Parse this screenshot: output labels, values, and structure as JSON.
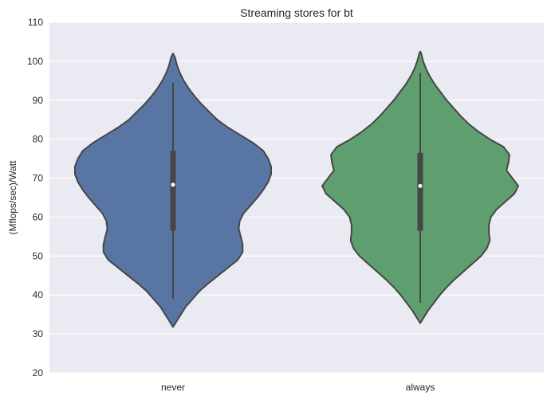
{
  "chart_data": {
    "type": "violin",
    "title": "Streaming stores for bt",
    "xlabel": "",
    "ylabel": "(Mflops/sec)/Watt",
    "ylim": [
      20,
      110
    ],
    "yticks": [
      20,
      30,
      40,
      50,
      60,
      70,
      80,
      90,
      100,
      110
    ],
    "categories": [
      "never",
      "always"
    ],
    "grid": true,
    "background": "#EAEAF2",
    "series": [
      {
        "category": "never",
        "color": "#5875A4",
        "median": 68.3,
        "q1": 56.5,
        "q3": 77,
        "whisker_low": 39,
        "whisker_high": 94.5,
        "density": [
          [
            31.8,
            0.0
          ],
          [
            33,
            0.03
          ],
          [
            35,
            0.08
          ],
          [
            37,
            0.13
          ],
          [
            39,
            0.2
          ],
          [
            41,
            0.27
          ],
          [
            43,
            0.36
          ],
          [
            45,
            0.46
          ],
          [
            47,
            0.56
          ],
          [
            49,
            0.66
          ],
          [
            51,
            0.71
          ],
          [
            53,
            0.71
          ],
          [
            55,
            0.69
          ],
          [
            57,
            0.67
          ],
          [
            59,
            0.68
          ],
          [
            61,
            0.72
          ],
          [
            63,
            0.79
          ],
          [
            65,
            0.86
          ],
          [
            67,
            0.92
          ],
          [
            69,
            0.97
          ],
          [
            71,
            1.0
          ],
          [
            73,
            1.0
          ],
          [
            75,
            0.97
          ],
          [
            77,
            0.92
          ],
          [
            79,
            0.82
          ],
          [
            81,
            0.69
          ],
          [
            83,
            0.56
          ],
          [
            85,
            0.45
          ],
          [
            87,
            0.37
          ],
          [
            89,
            0.29
          ],
          [
            91,
            0.22
          ],
          [
            93,
            0.16
          ],
          [
            95,
            0.11
          ],
          [
            97,
            0.07
          ],
          [
            99,
            0.04
          ],
          [
            101,
            0.02
          ],
          [
            102,
            0.0
          ]
        ]
      },
      {
        "category": "always",
        "color": "#5F9E6E",
        "median": 68,
        "q1": 56.5,
        "q3": 76.5,
        "whisker_low": 38,
        "whisker_high": 97,
        "density": [
          [
            32.8,
            0.0
          ],
          [
            34,
            0.03
          ],
          [
            36,
            0.08
          ],
          [
            38,
            0.14
          ],
          [
            40,
            0.2
          ],
          [
            42,
            0.27
          ],
          [
            44,
            0.35
          ],
          [
            46,
            0.44
          ],
          [
            48,
            0.53
          ],
          [
            50,
            0.62
          ],
          [
            52,
            0.68
          ],
          [
            54,
            0.71
          ],
          [
            56,
            0.7
          ],
          [
            58,
            0.7
          ],
          [
            60,
            0.72
          ],
          [
            62,
            0.78
          ],
          [
            64,
            0.87
          ],
          [
            66,
            0.96
          ],
          [
            68,
            1.0
          ],
          [
            70,
            0.94
          ],
          [
            72,
            0.88
          ],
          [
            74,
            0.9
          ],
          [
            76,
            0.91
          ],
          [
            78,
            0.85
          ],
          [
            80,
            0.71
          ],
          [
            82,
            0.59
          ],
          [
            84,
            0.49
          ],
          [
            86,
            0.41
          ],
          [
            88,
            0.34
          ],
          [
            90,
            0.27
          ],
          [
            92,
            0.21
          ],
          [
            94,
            0.15
          ],
          [
            96,
            0.1
          ],
          [
            98,
            0.06
          ],
          [
            100,
            0.03
          ],
          [
            102,
            0.01
          ],
          [
            102.5,
            0.0
          ]
        ]
      }
    ]
  }
}
